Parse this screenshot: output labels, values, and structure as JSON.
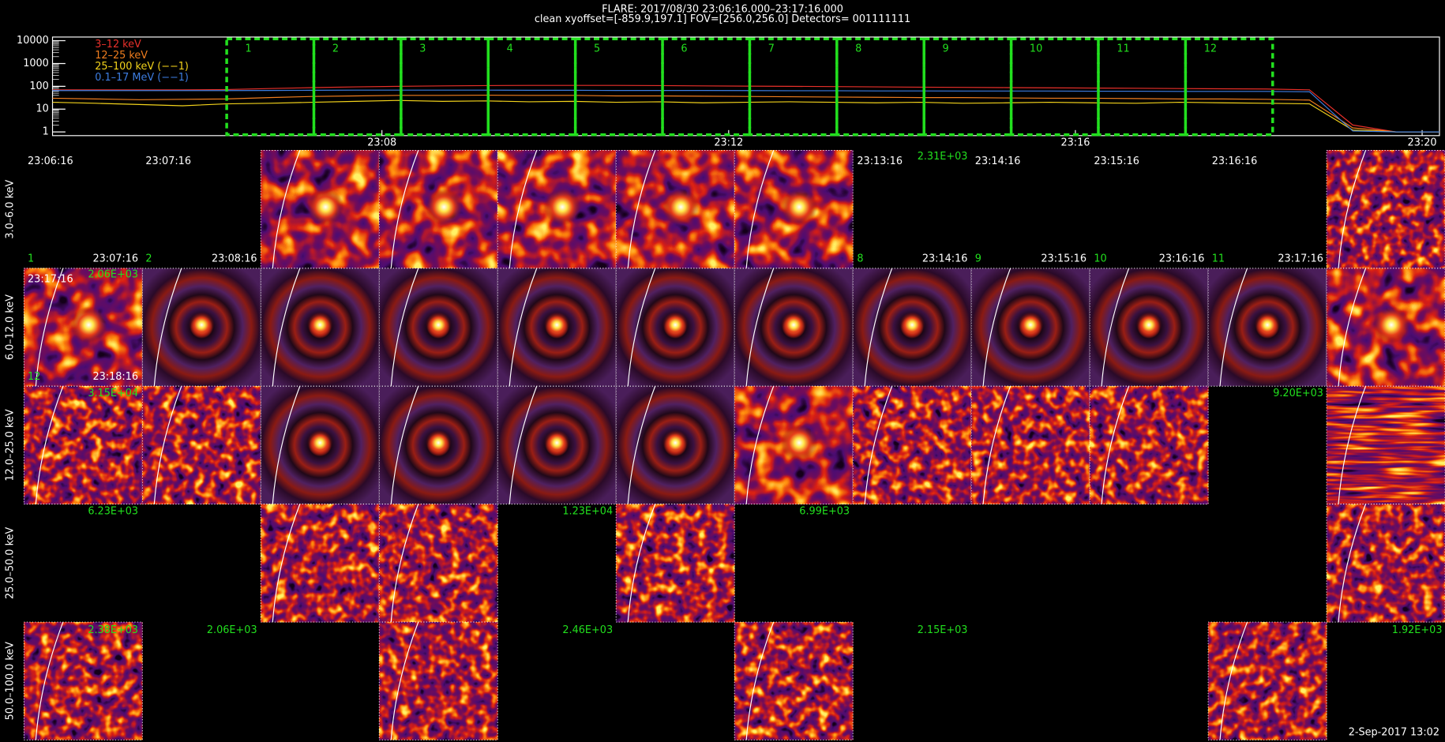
{
  "header": {
    "title": "FLARE: 2017/08/30 23:06:16.000–23:17:16.000",
    "subtitle": "clean    xyoffset=[-859.9,197.1]    FOV=[256.0,256.0]    Detectors= 001111111"
  },
  "chart_data": {
    "type": "line",
    "x": [
      4.2,
      4.7,
      5.2,
      5.7,
      6.2,
      6.7,
      7.2,
      7.7,
      8.2,
      8.7,
      9.2,
      9.7,
      10.2,
      10.7,
      11.2,
      11.7,
      12.2,
      12.7,
      13.2,
      13.7,
      14.2,
      14.7,
      15.2,
      15.7,
      16.2,
      16.7,
      17.2,
      17.7,
      18.2,
      18.7,
      19.2,
      19.7,
      20.2
    ],
    "xlim": [
      4.2,
      20.2
    ],
    "xticks": [
      {
        "value": 8,
        "label": "23:08"
      },
      {
        "value": 12,
        "label": "23:12"
      },
      {
        "value": 16,
        "label": "23:16"
      },
      {
        "value": 20,
        "label": "23:20"
      }
    ],
    "ylim": [
      1,
      10000
    ],
    "yticks": [
      1,
      10,
      100,
      1000,
      10000
    ],
    "log_y": true,
    "series": [
      {
        "name": "3–12 keV",
        "color": "#e8302a",
        "values": [
          70,
          70,
          70,
          70,
          72,
          80,
          88,
          95,
          100,
          105,
          108,
          110,
          110,
          110,
          108,
          105,
          102,
          100,
          97,
          95,
          92,
          90,
          88,
          86,
          84,
          82,
          80,
          78,
          76,
          70,
          2,
          1,
          1
        ]
      },
      {
        "name": "12–25 keV",
        "color": "#f07d1e",
        "values": [
          30,
          28,
          26,
          27,
          28,
          32,
          36,
          38,
          40,
          40,
          41,
          40,
          40,
          38,
          38,
          37,
          36,
          35,
          34,
          33,
          32,
          32,
          31,
          30,
          30,
          29,
          28,
          28,
          27,
          25,
          1.5,
          1,
          1
        ]
      },
      {
        "name": "25–100 keV (−−1)",
        "color": "#f2d21b",
        "values": [
          20,
          18,
          16,
          14,
          17,
          18,
          20,
          22,
          24,
          22,
          23,
          21,
          22,
          20,
          21,
          19,
          20,
          21,
          20,
          19,
          20,
          18,
          19,
          20,
          19,
          18,
          20,
          19,
          18,
          17,
          1.2,
          1,
          1
        ]
      },
      {
        "name": "0.1–17 MeV (−−1)",
        "color": "#3d7de0",
        "values": [
          65,
          65,
          65,
          65,
          65,
          66,
          67,
          68,
          68,
          68,
          68,
          67,
          67,
          66,
          66,
          66,
          65,
          64,
          64,
          63,
          63,
          62,
          62,
          62,
          61,
          61,
          60,
          60,
          60,
          58,
          1.1,
          1,
          1
        ]
      }
    ],
    "intervals": [
      "1",
      "2",
      "3",
      "4",
      "5",
      "6",
      "7",
      "8",
      "9",
      "10",
      "11",
      "12"
    ]
  },
  "row_labels": [
    "3.0–6.0 keV",
    "6.0–12.0 keV",
    "12.0–25.0 keV",
    "25.0–50.0 keV",
    "50.0–100.0 keV"
  ],
  "annotations": [
    "23:06:16",
    "23:07:16",
    "23:13:16",
    "2.31E+03",
    "23:14:16",
    "23:15:16",
    "23:16:16",
    "1",
    "23:07:16",
    "2",
    "23:08:16",
    "8",
    "23:14:16",
    "9",
    "23:15:16",
    "10",
    "23:16:16",
    "11",
    "23:17:16",
    "23:17:16",
    "2.06E+03",
    "12",
    "23:18:16",
    "3.15E+04",
    "9.20E+03",
    "6.23E+03",
    "1.23E+04",
    "6.99E+03",
    "2.38E+03",
    "2.06E+03",
    "2.46E+03",
    "2.15E+03",
    "1.92E+03"
  ],
  "timestamp": "2-Sep-2017 13:02"
}
